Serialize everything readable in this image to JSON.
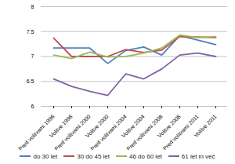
{
  "chart_data": {
    "type": "line",
    "categories": [
      "Pred volitvami 1996",
      "Volitve 1996",
      "Pred volitvami 2000",
      "Volitve 2000",
      "Pred volitvami 2004",
      "Volitve 2004",
      "Pred volitvami 2008",
      "Volitve 2008",
      "Pred volitvami 2011",
      "Volitve 2011"
    ],
    "series": [
      {
        "name": "do 30 let",
        "color": "#4f81bd",
        "values": [
          7.17,
          7.17,
          7.17,
          6.86,
          7.12,
          7.19,
          7.03,
          7.42,
          7.33,
          7.24
        ]
      },
      {
        "name": "30 do 45 let",
        "color": "#c0504d",
        "values": [
          7.37,
          7.0,
          7.0,
          7.0,
          7.14,
          7.08,
          7.13,
          7.4,
          7.39,
          7.38
        ]
      },
      {
        "name": "46 do 60 let",
        "color": "#9bbb59",
        "values": [
          7.03,
          6.96,
          7.09,
          6.99,
          7.0,
          7.07,
          7.17,
          7.43,
          7.38,
          7.4
        ]
      },
      {
        "name": "61 let in več",
        "color": "#8064a2",
        "values": [
          6.55,
          6.4,
          6.3,
          6.22,
          6.65,
          6.55,
          6.75,
          7.03,
          7.07,
          7.0
        ]
      }
    ],
    "ylim": [
      6,
      8
    ],
    "yticks": [
      6,
      6.5,
      7,
      7.5,
      8
    ],
    "grid": true,
    "legend": "bottom"
  }
}
